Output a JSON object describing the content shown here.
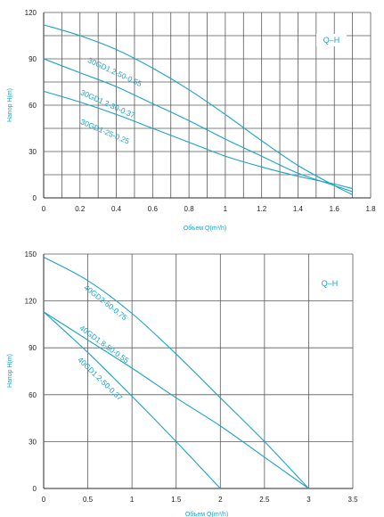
{
  "chart_data": [
    {
      "type": "line",
      "legend": "Q–H",
      "xlabel": "Объем Q(m³/h)",
      "ylabel": "Напор H(m)",
      "xlim": [
        0,
        1.8
      ],
      "ylim": [
        0,
        120
      ],
      "xticks": [
        0,
        0.2,
        0.4,
        0.6,
        0.8,
        1,
        1.2,
        1.4,
        1.6,
        1.8
      ],
      "xtick_labels": [
        "0",
        "0.2",
        "0.4",
        "0.6",
        "0.8",
        "1",
        "1.2",
        "1.4",
        "1.6",
        "1.8"
      ],
      "yticks": [
        0,
        30,
        60,
        90,
        120
      ],
      "ytick_labels": [
        "0",
        "30",
        "60",
        "90",
        "120"
      ],
      "x_grid_step": 0.1,
      "y_grid_step": 15,
      "color": "#1aa3c7",
      "series": [
        {
          "name": "30GD1.2-50-0.55",
          "x": [
            0,
            0.2,
            0.4,
            0.6,
            0.8,
            1.0,
            1.2,
            1.4,
            1.6,
            1.7
          ],
          "y": [
            112,
            105,
            96,
            84,
            70,
            54,
            37,
            21,
            8,
            2
          ]
        },
        {
          "name": "30GD1.2-30-0.37",
          "x": [
            0,
            0.2,
            0.4,
            0.6,
            0.8,
            1.0,
            1.2,
            1.4,
            1.6,
            1.7
          ],
          "y": [
            90,
            81,
            72,
            61,
            50,
            38,
            27,
            16,
            8,
            4
          ]
        },
        {
          "name": "30GD1-25-0.25",
          "x": [
            0,
            0.2,
            0.4,
            0.6,
            0.8,
            1.0,
            1.2,
            1.4,
            1.6,
            1.7
          ],
          "y": [
            69,
            62,
            54,
            45,
            36,
            27,
            20,
            14,
            9,
            6
          ]
        }
      ],
      "series_labels": [
        {
          "text": "30GD1.2-50-0.55",
          "x": 0.24,
          "y": 88,
          "angle": 25
        },
        {
          "text": "30GD1.2-30-0.37",
          "x": 0.2,
          "y": 67,
          "angle": 24
        },
        {
          "text": "30GD1-25-0.25",
          "x": 0.2,
          "y": 48,
          "angle": 23
        }
      ]
    },
    {
      "type": "line",
      "legend": "Q–H",
      "xlabel": "Объем Q(m³/h)",
      "ylabel": "Напор H(m)",
      "xlim": [
        0,
        3.5
      ],
      "ylim": [
        0,
        150
      ],
      "xticks": [
        0,
        0.5,
        1,
        1.5,
        2,
        2.5,
        3,
        3.5
      ],
      "xtick_labels": [
        "0",
        "0.5",
        "1",
        "1.5",
        "2",
        "2.5",
        "3",
        "3.5"
      ],
      "yticks": [
        0,
        30,
        60,
        90,
        120,
        150
      ],
      "ytick_labels": [
        "0",
        "30",
        "60",
        "90",
        "120",
        "150"
      ],
      "x_grid_step": 0.5,
      "y_grid_step": 30,
      "color": "#1aa3c7",
      "series": [
        {
          "name": "40GD2-60-0.75",
          "x": [
            0,
            0.5,
            1.0,
            1.5,
            2.0,
            2.5,
            3.0
          ],
          "y": [
            148,
            133,
            112,
            86,
            58,
            30,
            0
          ]
        },
        {
          "name": "40GD1.8-50-0.55",
          "x": [
            0,
            0.5,
            1.0,
            1.5,
            2.0,
            2.5,
            3.0
          ],
          "y": [
            113,
            95,
            77,
            58,
            40,
            20,
            0
          ]
        },
        {
          "name": "40GD1.2-50-0.37",
          "x": [
            0,
            0.5,
            1.0,
            1.5,
            2.0
          ],
          "y": [
            113,
            87,
            59,
            30,
            0
          ]
        }
      ],
      "series_labels": [
        {
          "text": "40GD2-60-0.75",
          "x": 0.45,
          "y": 128,
          "angle": 38
        },
        {
          "text": "40GD1.8-50-0.55",
          "x": 0.4,
          "y": 102,
          "angle": 36
        },
        {
          "text": "40GD1.2-50-0.37",
          "x": 0.38,
          "y": 82,
          "angle": 44
        }
      ]
    }
  ]
}
